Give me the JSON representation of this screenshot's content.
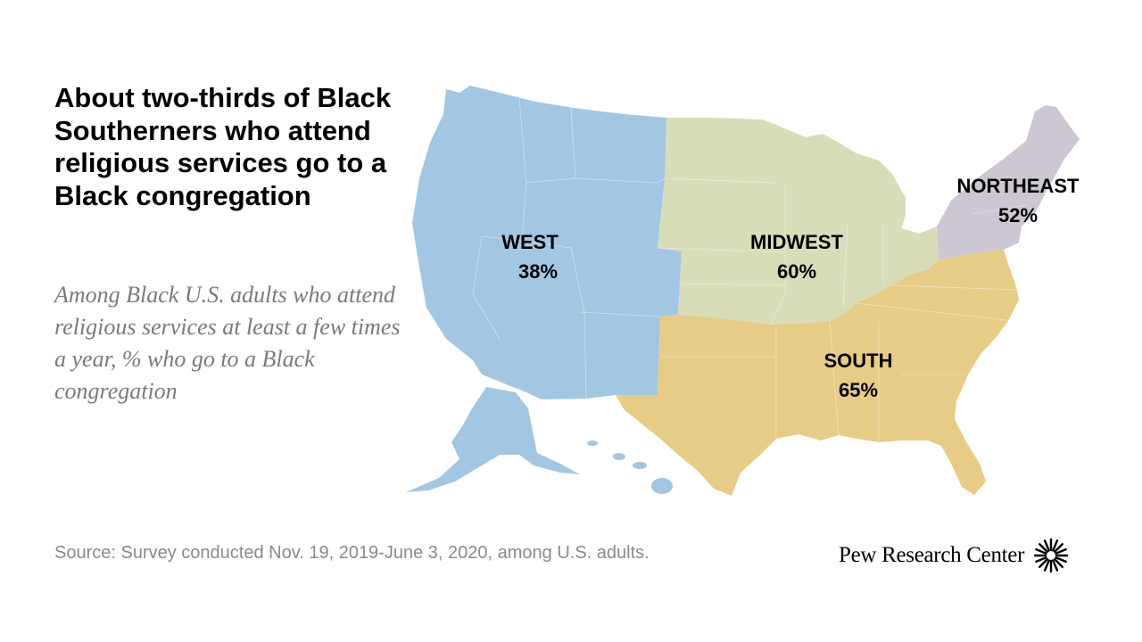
{
  "title": "About two-thirds of Black Southerners who attend religious services go to a Black congregation",
  "subtitle": "Among Black U.S. adults who attend religious services at least a few times a year, % who go to a Black congregation",
  "source": "Source: Survey conducted Nov. 19, 2019-June 3, 2020, among U.S. adults.",
  "brand": "Pew Research Center",
  "brand_logo_icon": "pew-sunburst-icon",
  "map_data": {
    "type": "choropleth",
    "regions": [
      {
        "id": "west",
        "name": "WEST",
        "value": 38,
        "value_label": "38%",
        "color": "#a3c7e2"
      },
      {
        "id": "midwest",
        "name": "MIDWEST",
        "value": 60,
        "value_label": "60%",
        "color": "#d8dcb8"
      },
      {
        "id": "northeast",
        "name": "NORTHEAST",
        "value": 52,
        "value_label": "52%",
        "color": "#ccc7d2"
      },
      {
        "id": "south",
        "name": "SOUTH",
        "value": 65,
        "value_label": "65%",
        "color": "#e6cc86"
      }
    ]
  }
}
